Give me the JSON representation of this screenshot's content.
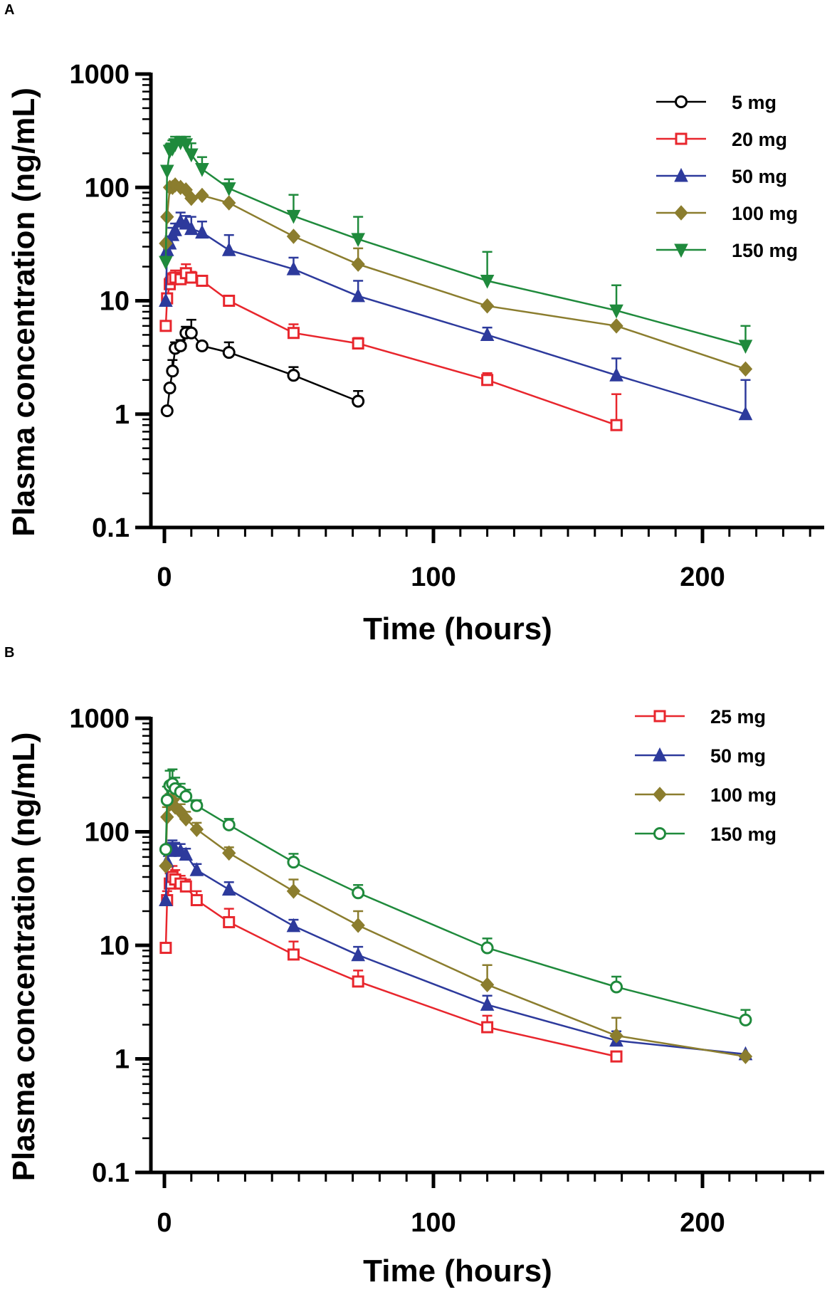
{
  "chart_data": [
    {
      "panel": "A",
      "type": "line",
      "scale_y": "log",
      "xlabel": "Time (hours)",
      "ylabel": "Plasma concentration (ng/mL)",
      "xlim": [
        -5,
        250
      ],
      "ylim": [
        0.1,
        1000
      ],
      "xticks": [
        0,
        100,
        200
      ],
      "xtick_labels": [
        "0",
        "100",
        "200"
      ],
      "yticks": [
        0.1,
        1,
        10,
        100,
        1000
      ],
      "ytick_labels": [
        "0.1",
        "1",
        "10",
        "100",
        "1000"
      ],
      "legend_position": "top-right",
      "series": [
        {
          "name": "5 mg",
          "color": "#000000",
          "marker": "circle-open",
          "x": [
            1,
            2,
            3,
            4,
            6,
            8,
            10,
            14,
            24,
            48,
            72
          ],
          "y": [
            1.07,
            1.7,
            2.4,
            3.8,
            4.0,
            5.2,
            5.2,
            4.0,
            3.5,
            2.2,
            1.3
          ],
          "err": [
            0,
            0,
            0.6,
            0.5,
            0.5,
            0.7,
            1.6,
            0,
            0.8,
            0.4,
            0.3
          ]
        },
        {
          "name": "20 mg",
          "color": "#e8262d",
          "marker": "square-open",
          "x": [
            0.5,
            1,
            2,
            3,
            4,
            6,
            8,
            10,
            14,
            24,
            48,
            72,
            120,
            168
          ],
          "y": [
            6.0,
            10.5,
            14.0,
            15.5,
            16.0,
            15.5,
            17.5,
            16.0,
            15.0,
            10.0,
            5.2,
            4.2,
            2.0,
            0.8
          ],
          "err": [
            0,
            1.0,
            2.0,
            2.0,
            2.5,
            2.0,
            3.5,
            2.0,
            1.5,
            0.5,
            1.0,
            0.5,
            0.3,
            0.7
          ]
        },
        {
          "name": "50 mg",
          "color": "#2d3a9c",
          "marker": "triangle-up",
          "x": [
            0.5,
            1,
            2,
            3,
            4,
            6,
            8,
            10,
            14,
            24,
            48,
            72,
            120,
            168,
            216
          ],
          "y": [
            10,
            28,
            32,
            38,
            42,
            50,
            48,
            43,
            40,
            28,
            19,
            11,
            5,
            2.2,
            1.0
          ],
          "err": [
            0,
            4,
            5,
            6,
            6,
            10,
            8,
            12,
            10,
            10,
            5,
            4,
            0.8,
            0.9,
            1.0
          ]
        },
        {
          "name": "100 mg",
          "color": "#8b7d2e",
          "marker": "diamond",
          "x": [
            0.5,
            1,
            2,
            3,
            4,
            6,
            8,
            10,
            14,
            24,
            48,
            72,
            120,
            168,
            216
          ],
          "y": [
            32,
            55,
            100,
            100,
            105,
            100,
            95,
            80,
            85,
            73,
            37,
            21,
            9,
            6,
            2.5
          ],
          "err": [
            0,
            0,
            0,
            0,
            0,
            0,
            0,
            0,
            0,
            0,
            0,
            8,
            0,
            0,
            0
          ]
        },
        {
          "name": "150 mg",
          "color": "#1f8a3c",
          "marker": "triangle-down",
          "x": [
            0.5,
            1,
            2,
            3,
            4,
            6,
            8,
            10,
            14,
            24,
            48,
            72,
            120,
            168,
            216
          ],
          "y": [
            22,
            140,
            210,
            220,
            240,
            250,
            240,
            195,
            145,
            98,
            56,
            35,
            15,
            8.2,
            4.0
          ],
          "err": [
            0,
            0,
            30,
            40,
            40,
            30,
            40,
            50,
            40,
            20,
            30,
            20,
            12,
            5.5,
            2.0
          ]
        }
      ]
    },
    {
      "panel": "B",
      "type": "line",
      "scale_y": "log",
      "xlabel": "Time (hours)",
      "ylabel": "Plasma concentration (ng/mL)",
      "xlim": [
        -5,
        250
      ],
      "ylim": [
        0.1,
        1000
      ],
      "xticks": [
        0,
        100,
        200
      ],
      "xtick_labels": [
        "0",
        "100",
        "200"
      ],
      "yticks": [
        0.1,
        1,
        10,
        100,
        1000
      ],
      "ytick_labels": [
        "0.1",
        "1",
        "10",
        "100",
        "1000"
      ],
      "legend_position": "top-right",
      "series": [
        {
          "name": "25 mg",
          "color": "#e8262d",
          "marker": "square-open",
          "x": [
            0.5,
            1,
            2,
            3,
            4,
            6,
            8,
            12,
            24,
            48,
            72,
            120,
            168
          ],
          "y": [
            9.5,
            25,
            35,
            40,
            38,
            35,
            33,
            25,
            16,
            8.3,
            4.8,
            1.9,
            1.05
          ],
          "err": [
            0,
            5,
            8,
            10,
            8,
            6,
            5,
            5,
            5,
            2.5,
            1.2,
            0.5,
            0
          ]
        },
        {
          "name": "50 mg",
          "color": "#2d3a9c",
          "marker": "triangle-up",
          "x": [
            0.5,
            1,
            2,
            3,
            4,
            6,
            8,
            12,
            24,
            48,
            72,
            120,
            168,
            216
          ],
          "y": [
            25,
            55,
            68,
            72,
            70,
            68,
            63,
            46,
            31,
            14.8,
            8.2,
            3.0,
            1.45,
            1.1
          ],
          "err": [
            0,
            10,
            12,
            12,
            10,
            10,
            8,
            6,
            5,
            2,
            1.5,
            0.6,
            0.3,
            0
          ]
        },
        {
          "name": "100 mg",
          "color": "#8b7d2e",
          "marker": "diamond",
          "x": [
            0.5,
            1,
            2,
            3,
            4,
            6,
            8,
            12,
            24,
            48,
            72,
            120,
            168,
            216
          ],
          "y": [
            50,
            135,
            175,
            190,
            165,
            150,
            130,
            105,
            65,
            30,
            15,
            4.5,
            1.6,
            1.05
          ],
          "err": [
            0,
            30,
            40,
            40,
            30,
            25,
            20,
            15,
            8,
            8,
            5,
            2.2,
            0.7,
            0
          ]
        },
        {
          "name": "150 mg",
          "color": "#1f8a3c",
          "marker": "circle-open",
          "x": [
            0.5,
            1,
            2,
            3,
            4,
            6,
            8,
            12,
            24,
            48,
            72,
            120,
            168,
            216
          ],
          "y": [
            70,
            190,
            255,
            265,
            240,
            225,
            205,
            170,
            115,
            54,
            29,
            9.5,
            4.3,
            2.2
          ],
          "err": [
            0,
            60,
            90,
            90,
            60,
            40,
            30,
            20,
            15,
            10,
            5,
            2.0,
            1.0,
            0.5
          ]
        }
      ]
    }
  ]
}
